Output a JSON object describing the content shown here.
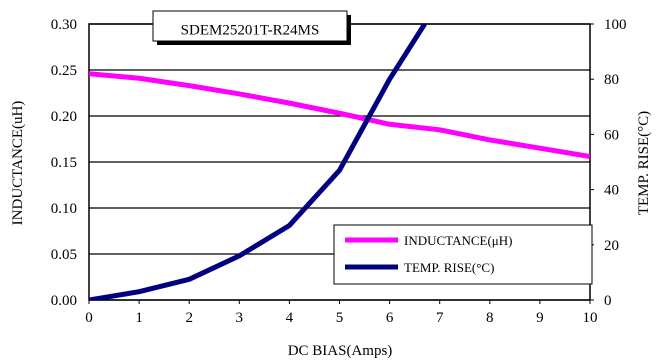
{
  "chart_data": {
    "type": "line",
    "title": "SDEM25201T-R24MS",
    "xlabel": "DC BIAS(Amps)",
    "ylabel_left": "INDUCTANCE(uH)",
    "ylabel_right": "TEMP. RISE(°C)",
    "xlim": [
      0,
      10
    ],
    "ylim_left": [
      0,
      0.3
    ],
    "ylim_right": [
      0,
      100
    ],
    "x_ticks": [
      "0",
      "1",
      "2",
      "3",
      "4",
      "5",
      "6",
      "7",
      "8",
      "9",
      "10"
    ],
    "y_left_ticks": [
      "0.00",
      "0.05",
      "0.10",
      "0.15",
      "0.20",
      "0.25",
      "0.30"
    ],
    "y_right_ticks": [
      "0",
      "20",
      "40",
      "60",
      "80",
      "100"
    ],
    "grid": "horizontal",
    "legend_position": "bottom-right",
    "series": [
      {
        "name": "INDUCTANCE(μH)",
        "axis": "left",
        "color": "#FF00FF",
        "x": [
          0,
          1,
          2,
          3,
          4,
          5,
          6,
          7,
          8,
          9,
          10
        ],
        "values": [
          0.246,
          0.241,
          0.233,
          0.224,
          0.214,
          0.203,
          0.191,
          0.185,
          0.174,
          0.165,
          0.156
        ]
      },
      {
        "name": "TEMP. RISE(°C)",
        "axis": "right",
        "color": "#000080",
        "x": [
          0,
          1,
          2,
          3,
          4,
          5,
          6,
          6.7
        ],
        "values": [
          0,
          3,
          7.5,
          16,
          27,
          47,
          80,
          100
        ]
      }
    ]
  }
}
